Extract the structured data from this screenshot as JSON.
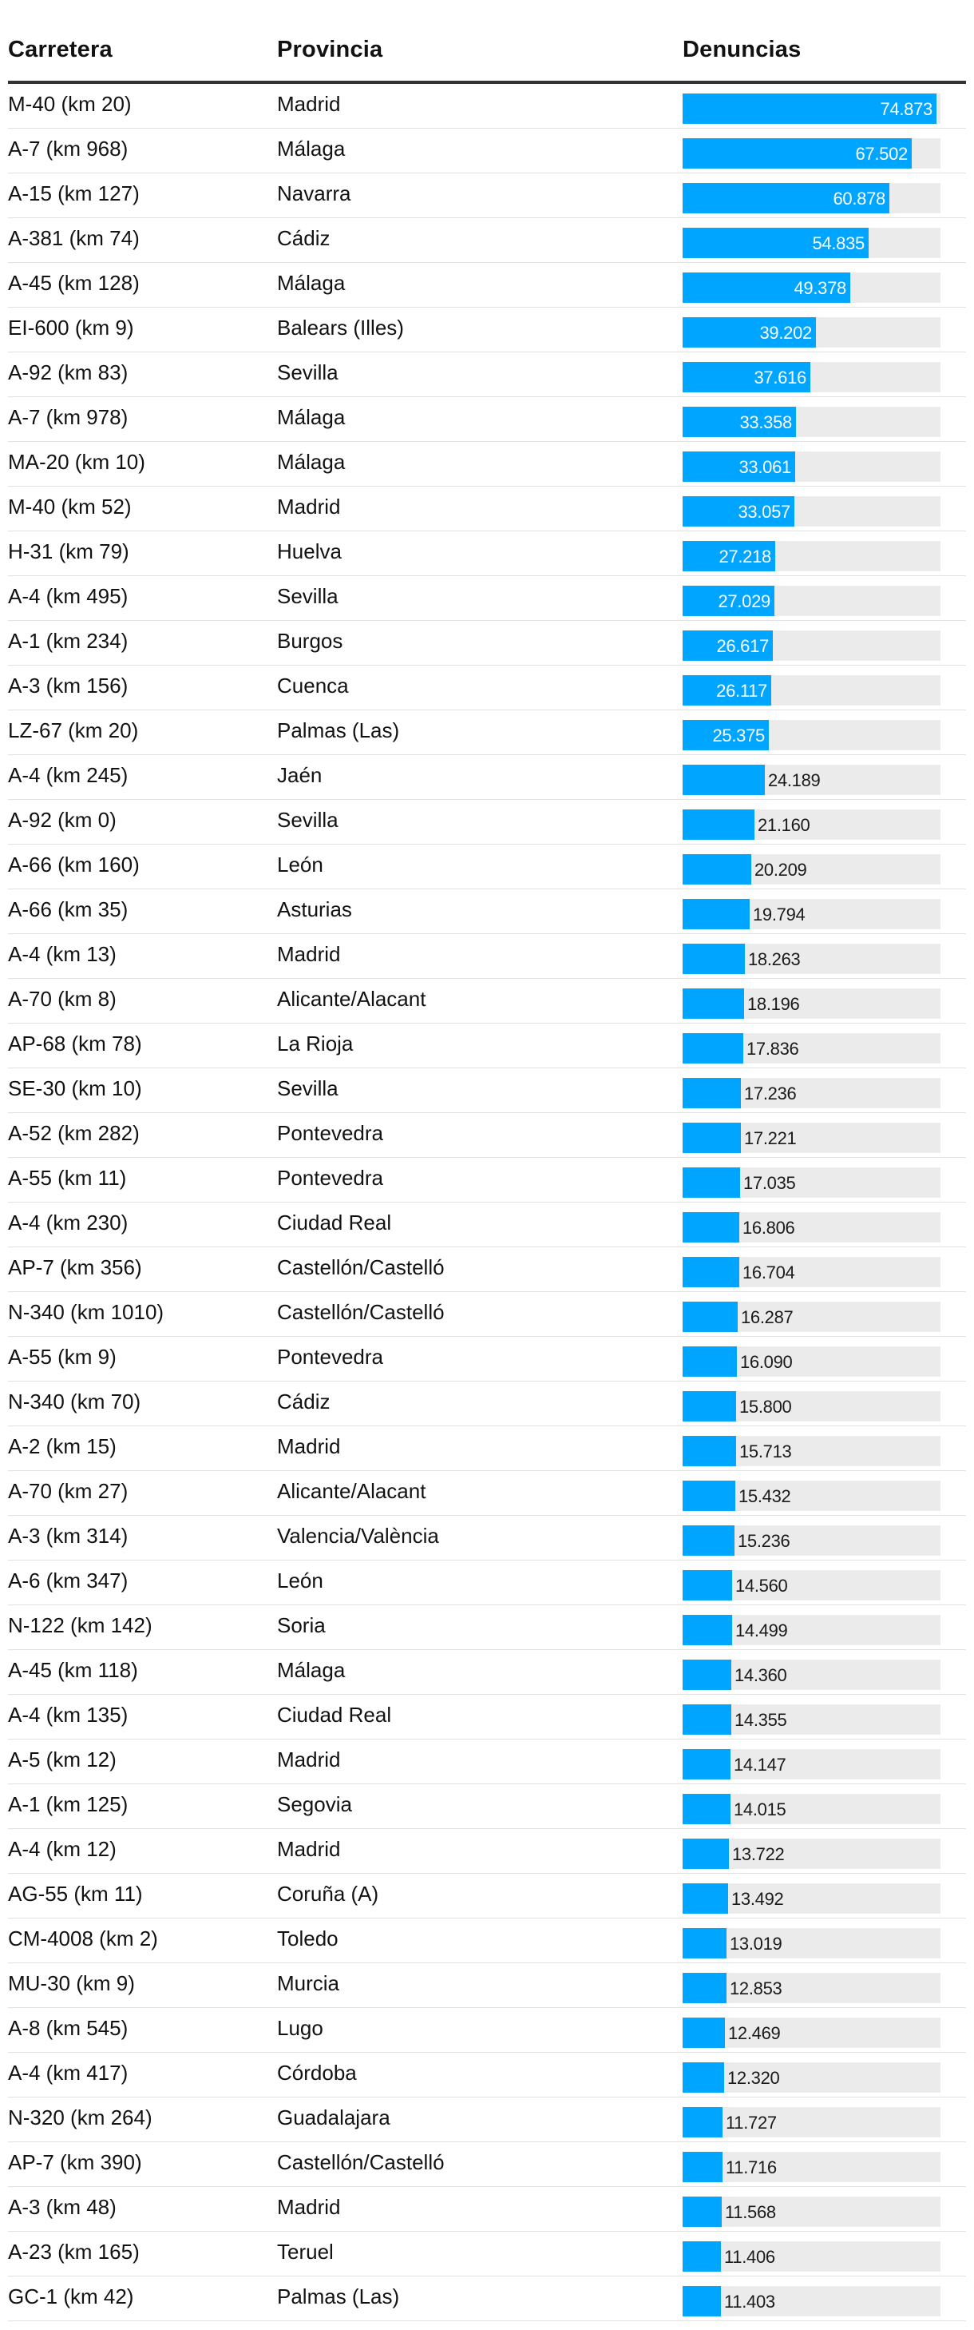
{
  "headers": {
    "road": "Carretera",
    "province": "Provincia",
    "value": "Denuncias"
  },
  "colors": {
    "bar": "#00a5ff",
    "track": "#ebebeb"
  },
  "chart_data": {
    "type": "bar",
    "xlim": [
      0,
      76000
    ],
    "rows": [
      {
        "road": "M-40 (km 20)",
        "province": "Madrid",
        "value": 74873,
        "label": "74.873"
      },
      {
        "road": "A-7 (km 968)",
        "province": "Málaga",
        "value": 67502,
        "label": "67.502"
      },
      {
        "road": "A-15 (km 127)",
        "province": "Navarra",
        "value": 60878,
        "label": "60.878"
      },
      {
        "road": "A-381 (km 74)",
        "province": "Cádiz",
        "value": 54835,
        "label": "54.835"
      },
      {
        "road": "A-45 (km 128)",
        "province": "Málaga",
        "value": 49378,
        "label": "49.378"
      },
      {
        "road": "EI-600 (km 9)",
        "province": "Balears (Illes)",
        "value": 39202,
        "label": "39.202"
      },
      {
        "road": "A-92 (km 83)",
        "province": "Sevilla",
        "value": 37616,
        "label": "37.616"
      },
      {
        "road": "A-7 (km 978)",
        "province": "Málaga",
        "value": 33358,
        "label": "33.358"
      },
      {
        "road": "MA-20 (km 10)",
        "province": "Málaga",
        "value": 33061,
        "label": "33.061"
      },
      {
        "road": "M-40 (km 52)",
        "province": "Madrid",
        "value": 33057,
        "label": "33.057"
      },
      {
        "road": "H-31 (km 79)",
        "province": "Huelva",
        "value": 27218,
        "label": "27.218"
      },
      {
        "road": "A-4 (km 495)",
        "province": "Sevilla",
        "value": 27029,
        "label": "27.029"
      },
      {
        "road": "A-1 (km 234)",
        "province": "Burgos",
        "value": 26617,
        "label": "26.617"
      },
      {
        "road": "A-3 (km 156)",
        "province": "Cuenca",
        "value": 26117,
        "label": "26.117"
      },
      {
        "road": "LZ-67 (km 20)",
        "province": "Palmas (Las)",
        "value": 25375,
        "label": "25.375"
      },
      {
        "road": "A-4 (km 245)",
        "province": "Jaén",
        "value": 24189,
        "label": "24.189"
      },
      {
        "road": "A-92 (km 0)",
        "province": "Sevilla",
        "value": 21160,
        "label": "21.160"
      },
      {
        "road": "A-66 (km 160)",
        "province": "León",
        "value": 20209,
        "label": "20.209"
      },
      {
        "road": "A-66 (km 35)",
        "province": "Asturias",
        "value": 19794,
        "label": "19.794"
      },
      {
        "road": "A-4 (km 13)",
        "province": "Madrid",
        "value": 18263,
        "label": "18.263"
      },
      {
        "road": "A-70 (km 8)",
        "province": "Alicante/Alacant",
        "value": 18196,
        "label": "18.196"
      },
      {
        "road": "AP-68 (km 78)",
        "province": "La Rioja",
        "value": 17836,
        "label": "17.836"
      },
      {
        "road": "SE-30 (km 10)",
        "province": "Sevilla",
        "value": 17236,
        "label": "17.236"
      },
      {
        "road": "A-52 (km 282)",
        "province": "Pontevedra",
        "value": 17221,
        "label": "17.221"
      },
      {
        "road": "A-55 (km 11)",
        "province": "Pontevedra",
        "value": 17035,
        "label": "17.035"
      },
      {
        "road": "A-4 (km 230)",
        "province": "Ciudad Real",
        "value": 16806,
        "label": "16.806"
      },
      {
        "road": "AP-7 (km 356)",
        "province": "Castellón/Castelló",
        "value": 16704,
        "label": "16.704"
      },
      {
        "road": "N-340 (km 1010)",
        "province": "Castellón/Castelló",
        "value": 16287,
        "label": "16.287"
      },
      {
        "road": "A-55 (km 9)",
        "province": "Pontevedra",
        "value": 16090,
        "label": "16.090"
      },
      {
        "road": "N-340 (km 70)",
        "province": "Cádiz",
        "value": 15800,
        "label": "15.800"
      },
      {
        "road": "A-2 (km 15)",
        "province": "Madrid",
        "value": 15713,
        "label": "15.713"
      },
      {
        "road": "A-70 (km 27)",
        "province": "Alicante/Alacant",
        "value": 15432,
        "label": "15.432"
      },
      {
        "road": "A-3 (km 314)",
        "province": "Valencia/València",
        "value": 15236,
        "label": "15.236"
      },
      {
        "road": "A-6 (km 347)",
        "province": "León",
        "value": 14560,
        "label": "14.560"
      },
      {
        "road": "N-122 (km 142)",
        "province": "Soria",
        "value": 14499,
        "label": "14.499"
      },
      {
        "road": "A-45 (km 118)",
        "province": "Málaga",
        "value": 14360,
        "label": "14.360"
      },
      {
        "road": "A-4 (km 135)",
        "province": "Ciudad Real",
        "value": 14355,
        "label": "14.355"
      },
      {
        "road": "A-5 (km 12)",
        "province": "Madrid",
        "value": 14147,
        "label": "14.147"
      },
      {
        "road": "A-1 (km 125)",
        "province": "Segovia",
        "value": 14015,
        "label": "14.015"
      },
      {
        "road": "A-4 (km 12)",
        "province": "Madrid",
        "value": 13722,
        "label": "13.722"
      },
      {
        "road": "AG-55 (km 11)",
        "province": "Coruña (A)",
        "value": 13492,
        "label": "13.492"
      },
      {
        "road": "CM-4008 (km 2)",
        "province": "Toledo",
        "value": 13019,
        "label": "13.019"
      },
      {
        "road": "MU-30 (km 9)",
        "province": "Murcia",
        "value": 12853,
        "label": "12.853"
      },
      {
        "road": "A-8 (km 545)",
        "province": "Lugo",
        "value": 12469,
        "label": "12.469"
      },
      {
        "road": "A-4 (km 417)",
        "province": "Córdoba",
        "value": 12320,
        "label": "12.320"
      },
      {
        "road": "N-320 (km 264)",
        "province": "Guadalajara",
        "value": 11727,
        "label": "11.727"
      },
      {
        "road": "AP-7 (km 390)",
        "province": "Castellón/Castelló",
        "value": 11716,
        "label": "11.716"
      },
      {
        "road": "A-3 (km 48)",
        "province": "Madrid",
        "value": 11568,
        "label": "11.568"
      },
      {
        "road": "A-23 (km 165)",
        "province": "Teruel",
        "value": 11406,
        "label": "11.406"
      },
      {
        "road": "GC-1 (km 42)",
        "province": "Palmas (Las)",
        "value": 11403,
        "label": "11.403"
      }
    ]
  }
}
